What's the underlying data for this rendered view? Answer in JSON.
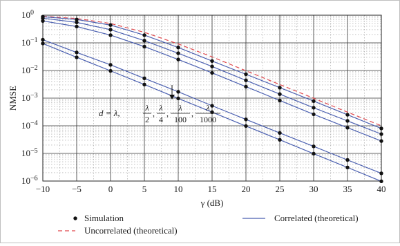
{
  "chart_data": {
    "type": "line",
    "xlabel": "γ (dB)",
    "ylabel": "NMSE",
    "yscale": "log",
    "xlim": [
      -10,
      40
    ],
    "ylim": [
      1e-06,
      1
    ],
    "grid": true,
    "minor_grid": true,
    "legend_position": "bottom",
    "xticks": [
      "−10",
      "−5",
      "0",
      "5",
      "10",
      "15",
      "20",
      "25",
      "30",
      "35",
      "40"
    ],
    "yticks": [
      {
        "base": "10",
        "exp": "0"
      },
      {
        "base": "10",
        "exp": "−1"
      },
      {
        "base": "10",
        "exp": "−2"
      },
      {
        "base": "10",
        "exp": "−3"
      },
      {
        "base": "10",
        "exp": "−4"
      },
      {
        "base": "10",
        "exp": "−5"
      },
      {
        "base": "10",
        "exp": "−6"
      }
    ],
    "x": [
      -10,
      -5,
      0,
      5,
      10,
      15,
      20,
      25,
      30,
      35,
      40
    ],
    "series": [
      {
        "name": "Uncorrelated (theoretical)",
        "style": "dashed",
        "color": "#e0474c",
        "values": [
          0.91,
          0.76,
          0.5,
          0.24,
          0.091,
          0.031,
          0.0098,
          0.0031,
          0.00099,
          0.00031,
          0.0001
        ]
      },
      {
        "name": "Correlated (theoretical)",
        "style": "solid",
        "color": "#4a5fb0",
        "values": [
          0.88,
          0.7,
          0.44,
          0.19,
          0.068,
          0.022,
          0.0073,
          0.0024,
          0.00078,
          0.00025,
          8e-05
        ]
      },
      {
        "name": "Correlated (theoretical)",
        "style": "solid",
        "color": "#4a5fb0",
        "values": [
          0.78,
          0.55,
          0.3,
          0.12,
          0.042,
          0.014,
          0.0044,
          0.0014,
          0.00045,
          0.00015,
          5e-05
        ]
      },
      {
        "name": "Correlated (theoretical)",
        "style": "solid",
        "color": "#4a5fb0",
        "values": [
          0.62,
          0.39,
          0.19,
          0.073,
          0.025,
          0.0082,
          0.0026,
          0.00082,
          0.00026,
          8.5e-05,
          2.8e-05
        ]
      },
      {
        "name": "Correlated (theoretical)",
        "style": "solid",
        "color": "#4a5fb0",
        "values": [
          0.13,
          0.045,
          0.016,
          0.0052,
          0.0017,
          0.00053,
          0.00017,
          5.5e-05,
          1.8e-05,
          5.8e-06,
          1.9e-06
        ]
      },
      {
        "name": "Correlated (theoretical)",
        "style": "solid",
        "color": "#4a5fb0",
        "values": [
          0.095,
          0.03,
          0.0097,
          0.0031,
          0.00098,
          0.00031,
          9.8e-05,
          3.1e-05,
          9.8e-06,
          3.1e-06,
          9.8e-07
        ]
      }
    ],
    "simulation_points": [
      [
        0.88,
        0.7,
        0.44,
        0.19,
        0.068,
        0.022,
        0.0073,
        0.0024,
        0.00078,
        0.00025,
        8e-05
      ],
      [
        0.78,
        0.55,
        0.3,
        0.12,
        0.042,
        0.014,
        0.0044,
        0.0014,
        0.00045,
        0.00015,
        5e-05
      ],
      [
        0.62,
        0.39,
        0.19,
        0.073,
        0.025,
        0.0082,
        0.0026,
        0.00082,
        0.00026,
        8.5e-05,
        2.8e-05
      ],
      [
        0.13,
        0.045,
        0.016,
        0.0052,
        0.0017,
        0.00053,
        0.00017,
        5.5e-05,
        1.8e-05,
        5.8e-06,
        1.9e-06
      ],
      [
        0.095,
        0.03,
        0.0097,
        0.0031,
        0.00098,
        0.00031,
        9.8e-05,
        3.1e-05,
        9.8e-06,
        3.1e-06,
        9.8e-07
      ]
    ],
    "annotation": {
      "prefix": "d = λ,",
      "fractions": [
        {
          "num": "λ",
          "den": "2"
        },
        {
          "num": "λ",
          "den": "4"
        },
        {
          "num": "λ",
          "den": "100"
        },
        {
          "num": "λ",
          "den": "1000"
        }
      ]
    },
    "legend": [
      {
        "label": "Simulation",
        "marker": "dot"
      },
      {
        "label": "Correlated (theoretical)",
        "marker": "solid-line"
      },
      {
        "label": "Uncorrelated (theoretical)",
        "marker": "dashed-line"
      }
    ]
  }
}
